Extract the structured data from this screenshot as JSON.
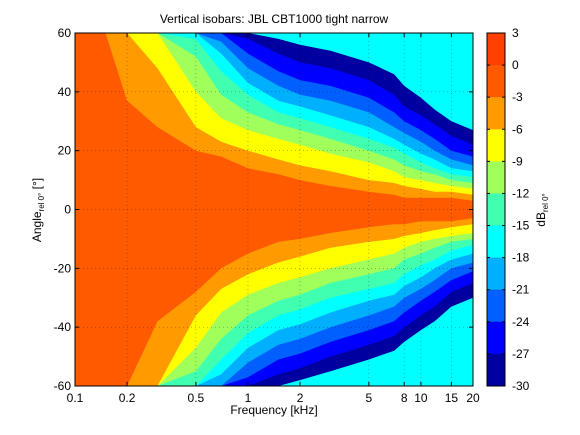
{
  "chart_data": {
    "type": "heatmap",
    "title": "Vertical isobars: JBL  CBT1000  tight narrow",
    "xlabel": "Frequency [kHz]",
    "ylabel": {
      "main": "Angle",
      "sub": "rel 0°",
      "unit": " [°]"
    },
    "colorbar_label": {
      "main": "dB",
      "sub": "rel 0°"
    },
    "x_scale": "log",
    "xlim": [
      0.1,
      20
    ],
    "ylim": [
      -60,
      60
    ],
    "x_ticks": [
      0.1,
      0.2,
      0.5,
      1,
      2,
      5,
      8,
      10,
      15,
      20
    ],
    "x_tick_labels": [
      "0.1",
      "0.2",
      "0.5",
      "1",
      "2",
      "5",
      "8",
      "10",
      "15",
      "20"
    ],
    "y_ticks": [
      -60,
      -40,
      -20,
      0,
      20,
      40,
      60
    ],
    "y_tick_labels": [
      "-60",
      "-40",
      "-20",
      "0",
      "20",
      "40",
      "60"
    ],
    "grid": true,
    "colorbar": {
      "min": -30,
      "max": 3,
      "ticks": [
        3,
        0,
        -3,
        -6,
        -9,
        -12,
        -15,
        -18,
        -21,
        -24,
        -27,
        -30
      ],
      "tick_labels": [
        "3",
        "0",
        "-3",
        "-6",
        "-9",
        "-12",
        "-15",
        "-18",
        "-21",
        "-24",
        "-27",
        "-30"
      ],
      "bands": [
        {
          "from": 0,
          "to": 3,
          "color": "#ff4000"
        },
        {
          "from": -3,
          "to": 0,
          "color": "#ff5a00"
        },
        {
          "from": -6,
          "to": -3,
          "color": "#ff9a00"
        },
        {
          "from": -9,
          "to": -6,
          "color": "#ffff00"
        },
        {
          "from": -12,
          "to": -9,
          "color": "#a0ff5a"
        },
        {
          "from": -15,
          "to": -12,
          "color": "#40ffb0"
        },
        {
          "from": -18,
          "to": -15,
          "color": "#00ffff"
        },
        {
          "from": -21,
          "to": -18,
          "color": "#00b0ff"
        },
        {
          "from": -24,
          "to": -21,
          "color": "#0060ff"
        },
        {
          "from": -27,
          "to": -24,
          "color": "#0000ff"
        },
        {
          "from": -30,
          "to": -27,
          "color": "#0000a0"
        }
      ]
    },
    "contours_upper": {
      "freqs": [
        0.1,
        0.15,
        0.2,
        0.3,
        0.5,
        0.7,
        1,
        1.5,
        2,
        3,
        5,
        7,
        8,
        10,
        12,
        15,
        20
      ],
      "angles": [
        [
          60,
          60,
          37,
          28,
          20,
          18,
          14,
          12,
          10,
          8,
          6,
          5,
          4,
          4,
          4,
          4,
          3
        ],
        [
          60,
          60,
          60,
          48,
          28,
          23,
          20,
          17,
          15,
          13,
          10,
          9,
          8,
          7,
          6,
          6,
          5
        ],
        [
          60,
          60,
          60,
          60,
          40,
          31,
          27,
          24,
          22,
          19,
          16,
          13,
          11,
          10,
          9,
          8,
          7
        ],
        [
          60,
          60,
          60,
          60,
          52,
          39,
          33,
          29,
          27,
          24,
          20,
          17,
          15,
          13,
          12,
          10,
          9
        ],
        [
          60,
          60,
          60,
          60,
          58,
          47,
          39,
          33,
          31,
          28,
          24,
          21,
          19,
          16,
          14,
          12,
          11
        ],
        [
          60,
          60,
          60,
          60,
          60,
          53,
          43,
          37,
          35,
          32,
          28,
          24,
          22,
          19,
          17,
          14,
          13
        ],
        [
          60,
          60,
          60,
          60,
          60,
          57,
          48,
          42,
          39,
          37,
          33,
          28,
          26,
          23,
          20,
          17,
          15
        ],
        [
          60,
          60,
          60,
          60,
          60,
          60,
          53,
          47,
          44,
          42,
          38,
          33,
          30,
          27,
          24,
          20,
          18
        ],
        [
          60,
          60,
          60,
          60,
          60,
          60,
          58,
          53,
          50,
          48,
          44,
          39,
          35,
          32,
          29,
          25,
          22
        ],
        [
          60,
          60,
          60,
          60,
          60,
          60,
          60,
          58,
          56,
          54,
          50,
          46,
          42,
          38,
          34,
          30,
          27
        ]
      ]
    },
    "contours_lower": {
      "freqs": [
        0.1,
        0.15,
        0.2,
        0.3,
        0.5,
        0.7,
        1,
        1.5,
        2,
        3,
        5,
        7,
        8,
        10,
        12,
        15,
        20
      ],
      "angles": [
        [
          -60,
          -60,
          -60,
          -38,
          -28,
          -20,
          -15,
          -11,
          -10,
          -8,
          -6,
          -5,
          -5,
          -4,
          -4,
          -4,
          -3
        ],
        [
          -60,
          -60,
          -60,
          -60,
          -36,
          -27,
          -22,
          -18,
          -16,
          -13,
          -11,
          -10,
          -9,
          -8,
          -7,
          -6,
          -5
        ],
        [
          -60,
          -60,
          -60,
          -60,
          -47,
          -35,
          -29,
          -25,
          -23,
          -20,
          -17,
          -15,
          -13,
          -11,
          -10,
          -9,
          -8
        ],
        [
          -60,
          -60,
          -60,
          -60,
          -55,
          -44,
          -36,
          -31,
          -29,
          -25,
          -22,
          -20,
          -17,
          -15,
          -13,
          -11,
          -10
        ],
        [
          -60,
          -60,
          -60,
          -60,
          -60,
          -51,
          -42,
          -36,
          -34,
          -30,
          -27,
          -25,
          -22,
          -19,
          -17,
          -14,
          -12
        ],
        [
          -60,
          -60,
          -60,
          -60,
          -60,
          -56,
          -47,
          -41,
          -39,
          -35,
          -31,
          -29,
          -26,
          -23,
          -20,
          -17,
          -15
        ],
        [
          -60,
          -60,
          -60,
          -60,
          -60,
          -60,
          -52,
          -46,
          -44,
          -40,
          -36,
          -33,
          -30,
          -27,
          -24,
          -20,
          -18
        ],
        [
          -60,
          -60,
          -60,
          -60,
          -60,
          -60,
          -57,
          -51,
          -49,
          -45,
          -41,
          -38,
          -35,
          -31,
          -28,
          -24,
          -21
        ],
        [
          -60,
          -60,
          -60,
          -60,
          -60,
          -60,
          -60,
          -56,
          -54,
          -50,
          -46,
          -43,
          -40,
          -36,
          -33,
          -28,
          -25
        ],
        [
          -60,
          -60,
          -60,
          -60,
          -60,
          -60,
          -60,
          -60,
          -58,
          -55,
          -51,
          -48,
          -45,
          -41,
          -38,
          -33,
          -30
        ]
      ]
    }
  }
}
